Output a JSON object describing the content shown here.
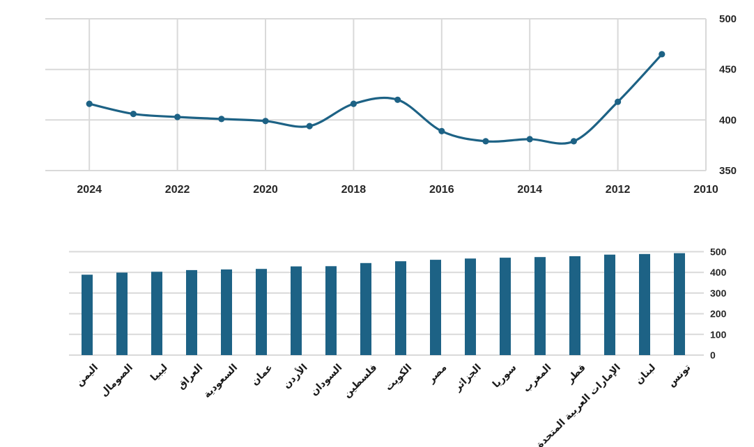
{
  "page": {
    "background": "#ffffff"
  },
  "chart_data": [
    {
      "type": "line",
      "title": "",
      "x": [
        2024,
        2023,
        2022,
        2021,
        2020,
        2019,
        2018,
        2017,
        2016,
        2015,
        2014,
        2013,
        2012,
        2011
      ],
      "values": [
        416,
        406,
        403,
        401,
        399,
        394,
        416,
        420,
        389,
        379,
        381,
        379,
        418,
        465
      ],
      "x_tick_labels": [
        "2024",
        "2022",
        "2020",
        "2018",
        "2016",
        "2014",
        "2012",
        "2010"
      ],
      "x_axis_reversed": true,
      "xlim": [
        2025,
        2010
      ],
      "ylim": [
        350,
        500
      ],
      "y_ticks": [
        350,
        400,
        450,
        500
      ],
      "y_tick_labels": [
        "350",
        "400",
        "450",
        "500"
      ],
      "y_axis_side": "right",
      "grid": "both",
      "legend": "none",
      "line_color": "#1d6285",
      "marker": "circle",
      "marker_color": "#1d6285",
      "line_smoothing": "spline",
      "gridline_color": "#d9d9d9",
      "tick_label_color": "#262626"
    },
    {
      "type": "bar",
      "title": "",
      "categories": [
        "اليمن",
        "الصومال",
        "ليبيا",
        "العراق",
        "السعودية",
        "عمان",
        "الأردن",
        "السودان",
        "فلسطين",
        "الكويت",
        "مصر",
        "الجزائر",
        "سوريا",
        "المغرب",
        "قطر",
        "الإمارات العربية المتحدة",
        "لبنان",
        "تونس"
      ],
      "values": [
        389,
        399,
        403,
        411,
        414,
        417,
        429,
        430,
        445,
        454,
        461,
        467,
        471,
        474,
        478,
        486,
        489,
        493
      ],
      "ylim": [
        0,
        500
      ],
      "y_ticks": [
        0,
        100,
        200,
        300,
        400,
        500
      ],
      "y_tick_labels": [
        "0",
        "100",
        "200",
        "300",
        "400",
        "500"
      ],
      "y_axis_side": "right",
      "grid": "horizontal",
      "category_label_rotation_deg": -45,
      "category_label_direction": "rtl",
      "bar_color": "#1d6285",
      "gridline_color": "#d9d9d9",
      "tick_label_color": "#262626"
    }
  ]
}
